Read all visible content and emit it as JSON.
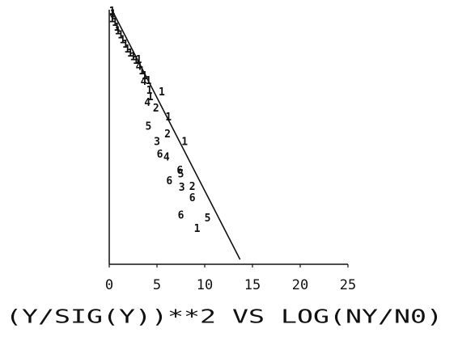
{
  "chart_data": {
    "type": "scatter",
    "title": "(Y/SIG(Y))**2 VS LOG(NY/N0)",
    "xlim": [
      0,
      25
    ],
    "xticks": [
      0,
      5,
      10,
      15,
      20,
      25
    ],
    "ylim": [
      -26.7,
      0
    ],
    "points": {
      "x": [
        0.3,
        0.4,
        0.3,
        0.6,
        0.8,
        0.9,
        1.2,
        1.4,
        1.7,
        1.9,
        2.2,
        2.5,
        2.8,
        3.1,
        3.1,
        3.4,
        3.7,
        3.6,
        4.1,
        4.2,
        4.3,
        4.0,
        4.9,
        5.5,
        6.2,
        4.1,
        6.1,
        7.9,
        5.0,
        5.3,
        6.0,
        7.4,
        7.5,
        6.3,
        7.6,
        8.7,
        8.7,
        7.5,
        10.3,
        9.2
      ],
      "y": [
        -0.2,
        -0.5,
        -1.0,
        -1.4,
        -1.9,
        -2.3,
        -2.7,
        -3.2,
        -3.7,
        -4.2,
        -4.6,
        -5.0,
        -5.4,
        -5.3,
        -6.0,
        -6.5,
        -7.0,
        -7.6,
        -7.5,
        -8.5,
        -9.2,
        -9.8,
        -10.4,
        -8.7,
        -11.3,
        -12.3,
        -13.1,
        -13.9,
        -13.9,
        -15.2,
        -15.5,
        -16.9,
        -17.3,
        -18.0,
        -18.7,
        -18.6,
        -19.8,
        -21.6,
        -21.9,
        -23.0
      ],
      "labels": [
        "1",
        "1",
        "1",
        "1",
        "1",
        "1",
        "1",
        "1",
        "1",
        "1",
        "1",
        "1",
        "1",
        "1",
        "4",
        "1",
        "1",
        "4",
        "1",
        "1",
        "1",
        "4",
        "2",
        "1",
        "1",
        "5",
        "2",
        "1",
        "3",
        "6",
        "4",
        "6",
        "5",
        "6",
        "3",
        "2",
        "6",
        "6",
        "5",
        "1"
      ]
    },
    "fit": {
      "x": [
        0.4,
        13.7
      ],
      "y": [
        -0.25,
        -26.2
      ]
    }
  }
}
